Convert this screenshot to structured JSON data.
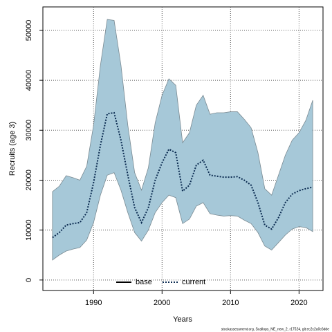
{
  "chart_data": {
    "type": "line",
    "x_label": "Years",
    "y_label": "Recruits (age 3)",
    "footer": "stockassessment.org, Scallops_NE_new_2, r17524, git:ec2c2a0c6dde",
    "x": [
      1984,
      1985,
      1986,
      1987,
      1988,
      1989,
      1990,
      1991,
      1992,
      1993,
      1994,
      1995,
      1996,
      1997,
      1998,
      1999,
      2000,
      2001,
      2002,
      2003,
      2004,
      2005,
      2006,
      2007,
      2008,
      2009,
      2010,
      2011,
      2012,
      2013,
      2014,
      2015,
      2016,
      2017,
      2018,
      2019,
      2020,
      2021,
      2022
    ],
    "band": {
      "color": "#a6c8d8",
      "edge": "#7a8a92",
      "lower": [
        4000,
        5000,
        5800,
        6200,
        6500,
        8000,
        11500,
        17000,
        21000,
        21500,
        18000,
        13500,
        9500,
        7800,
        10000,
        13500,
        15500,
        17000,
        16500,
        11300,
        12200,
        14800,
        15500,
        13300,
        13000,
        12800,
        12900,
        12800,
        12000,
        11300,
        9500,
        6800,
        6000,
        7500,
        9000,
        10200,
        10700,
        10500,
        9700
      ],
      "upper": [
        17700,
        18800,
        20900,
        20500,
        20000,
        22800,
        31000,
        43000,
        52200,
        52000,
        43000,
        31000,
        21500,
        18000,
        22500,
        31500,
        37000,
        40300,
        39000,
        27500,
        29500,
        35000,
        37000,
        33200,
        33500,
        33500,
        33700,
        33700,
        32200,
        30500,
        25500,
        18300,
        17000,
        21000,
        25000,
        28000,
        29500,
        32000,
        36000
      ]
    },
    "series": [
      {
        "name": "current",
        "color": "#0a2a50",
        "dash": "dotted",
        "values": [
          8500,
          9500,
          11000,
          11300,
          11500,
          13500,
          19500,
          27000,
          33300,
          33500,
          28000,
          21000,
          14500,
          11500,
          14500,
          20000,
          23500,
          26200,
          25500,
          17800,
          19000,
          23000,
          24000,
          21000,
          20800,
          20600,
          20600,
          20700,
          20000,
          19000,
          15500,
          11000,
          10200,
          12500,
          15500,
          17200,
          17900,
          18300,
          18600
        ]
      }
    ],
    "legend": [
      {
        "name": "base",
        "color": "#000000",
        "dash": "solid"
      },
      {
        "name": "current",
        "color": "#0a2a50",
        "dash": "dotted"
      }
    ],
    "xlim": [
      1982.6,
      2023.5
    ],
    "ylim": [
      -2100,
      54700
    ],
    "xticks": [
      1990,
      2000,
      2010,
      2020
    ],
    "yticks": [
      0,
      10000,
      20000,
      30000,
      40000,
      50000
    ],
    "grid": true
  }
}
